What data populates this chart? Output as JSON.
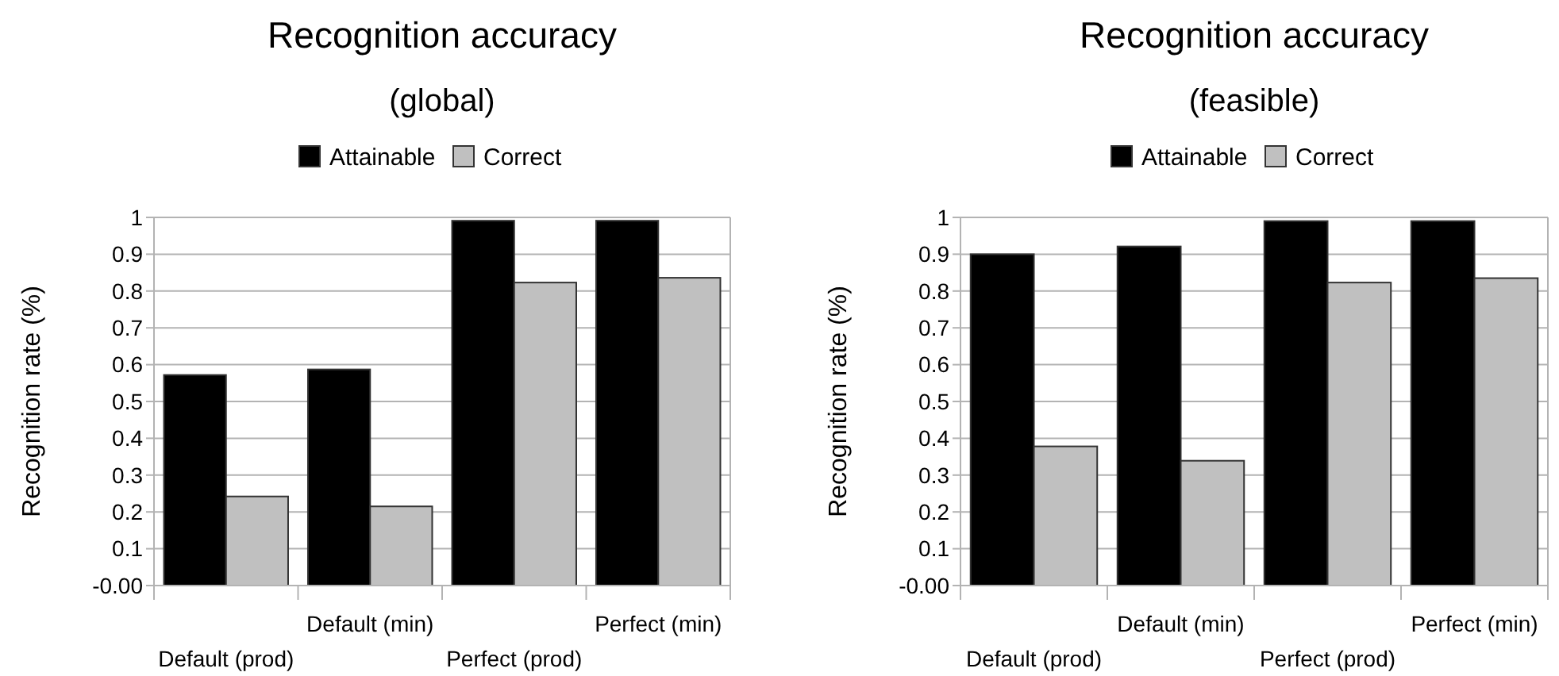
{
  "chart_data": [
    {
      "type": "bar",
      "title": "Recognition accuracy",
      "subtitle": "(global)",
      "ylabel": "Recognition rate (%)",
      "categories": [
        "Default (prod)",
        "Default (min)",
        "Perfect (prod)",
        "Perfect (min)"
      ],
      "series": [
        {
          "name": "Attainable",
          "color": "#000000",
          "values": [
            0.572,
            0.587,
            0.991,
            0.991
          ]
        },
        {
          "name": "Correct",
          "color": "#c0c0c0",
          "values": [
            0.242,
            0.215,
            0.823,
            0.836
          ]
        }
      ],
      "ylim": [
        0,
        1
      ],
      "yticks": [
        {
          "value": 0,
          "label": "-0.00"
        },
        0.1,
        0.2,
        0.3,
        0.4,
        0.5,
        0.6,
        0.7,
        0.8,
        0.9,
        1
      ],
      "grid": "y",
      "legend": "top"
    },
    {
      "type": "bar",
      "title": "Recognition accuracy",
      "subtitle": "(feasible)",
      "ylabel": "Recognition rate (%)",
      "categories": [
        "Default (prod)",
        "Default (min)",
        "Perfect (prod)",
        "Perfect (min)"
      ],
      "series": [
        {
          "name": "Attainable",
          "color": "#000000",
          "values": [
            0.9,
            0.921,
            0.99,
            0.99
          ]
        },
        {
          "name": "Correct",
          "color": "#c0c0c0",
          "values": [
            0.378,
            0.339,
            0.823,
            0.835
          ]
        }
      ],
      "ylim": [
        0,
        1
      ],
      "yticks": [
        {
          "value": 0,
          "label": "-0.00"
        },
        0.1,
        0.2,
        0.3,
        0.4,
        0.5,
        0.6,
        0.7,
        0.8,
        0.9,
        1
      ],
      "grid": "y",
      "legend": "top"
    }
  ]
}
